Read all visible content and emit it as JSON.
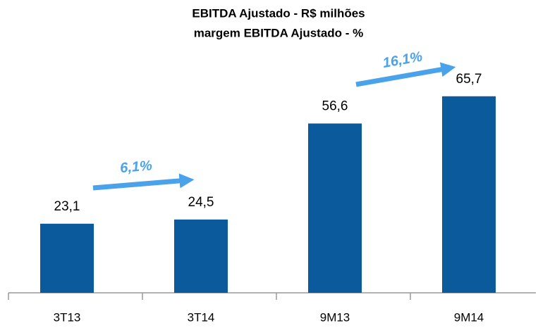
{
  "chart_data": {
    "type": "bar",
    "title": "EBITDA Ajustado - R$ milhões",
    "subtitle": "margem EBITDA Ajustado - %",
    "categories": [
      "3T13",
      "3T14",
      "9M13",
      "9M14"
    ],
    "values": [
      23.1,
      24.5,
      56.6,
      65.7
    ],
    "value_labels": [
      "23,1",
      "24,5",
      "56,6",
      "65,7"
    ],
    "color": "#0a5a9c",
    "annotations": [
      {
        "text": "6,1%"
      },
      {
        "text": "16,1%"
      }
    ],
    "annotation_color": "#4aa3ea"
  }
}
